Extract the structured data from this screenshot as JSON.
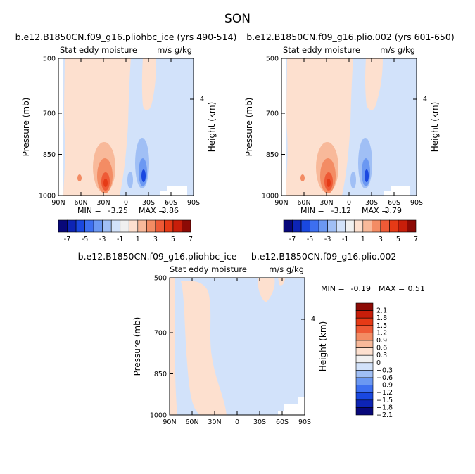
{
  "page": {
    "title": "SON"
  },
  "chart_data": [
    {
      "type": "contour",
      "title": "b.e12.B1850CN.f09_g16.pliohbc_ice (yrs 490-514)",
      "subtitle_left": "Stat eddy moisture",
      "subtitle_right": "m/s g/kg",
      "ylabel": "Pressure (mb)",
      "ylabel_right": "Height (km)",
      "xticks": [
        "90N",
        "60N",
        "30N",
        "0",
        "30S",
        "60S",
        "90S"
      ],
      "xlim": [
        90,
        -90
      ],
      "yticks": [
        "500",
        "700",
        "850",
        "1000"
      ],
      "yticks_values": [
        500,
        700,
        850,
        1000
      ],
      "ylim": [
        1000,
        500
      ],
      "yticks_right": [
        "4"
      ],
      "min_label": "MIN =",
      "min_value": "-3.25",
      "max_label": "MAX =",
      "max_value": "3.86",
      "colorbar_labels": [
        "-7",
        "-5",
        "-3",
        "-1",
        "1",
        "3",
        "5",
        "7"
      ],
      "features": [
        {
          "lat": 30,
          "p": 950,
          "value": 3.86,
          "sign": "positive"
        },
        {
          "lat": -25,
          "p": 920,
          "value": -3.25,
          "sign": "negative"
        }
      ]
    },
    {
      "type": "contour",
      "title": "b.e12.B1850CN.f09_g16.plio.002 (yrs 601-650)",
      "subtitle_left": "Stat eddy moisture",
      "subtitle_right": "m/s g/kg",
      "ylabel": "Pressure (mb)",
      "ylabel_right": "Height (km)",
      "xticks": [
        "90N",
        "60N",
        "30N",
        "0",
        "30S",
        "60S",
        "90S"
      ],
      "xlim": [
        90,
        -90
      ],
      "yticks": [
        "500",
        "700",
        "850",
        "1000"
      ],
      "yticks_values": [
        500,
        700,
        850,
        1000
      ],
      "ylim": [
        1000,
        500
      ],
      "yticks_right": [
        "4"
      ],
      "min_label": "MIN =",
      "min_value": "-3.12",
      "max_label": "MAX =",
      "max_value": "3.79",
      "colorbar_labels": [
        "-7",
        "-5",
        "-3",
        "-1",
        "1",
        "3",
        "5",
        "7"
      ],
      "features": [
        {
          "lat": 30,
          "p": 950,
          "value": 3.79,
          "sign": "positive"
        },
        {
          "lat": -25,
          "p": 920,
          "value": -3.12,
          "sign": "negative"
        }
      ]
    },
    {
      "type": "contour",
      "title": "b.e12.B1850CN.f09_g16.pliohbc_ice — b.e12.B1850CN.f09_g16.plio.002",
      "subtitle_left": "Stat eddy moisture",
      "subtitle_right": "m/s g/kg",
      "ylabel": "Pressure (mb)",
      "ylabel_right": "Height (km)",
      "xticks": [
        "90N",
        "60N",
        "30N",
        "0",
        "30S",
        "60S",
        "90S"
      ],
      "xlim": [
        90,
        -90
      ],
      "yticks": [
        "500",
        "700",
        "850",
        "1000"
      ],
      "yticks_values": [
        500,
        700,
        850,
        1000
      ],
      "ylim": [
        1000,
        500
      ],
      "yticks_right": [
        "4"
      ],
      "min_label": "MIN =",
      "min_value": "-0.19",
      "max_label": "MAX =",
      "max_value": "0.51",
      "colorbar_labels": [
        "2.1",
        "1.8",
        "1.5",
        "1.2",
        "0.9",
        "0.6",
        "0.3",
        "0",
        "−0.3",
        "−0.6",
        "−0.9",
        "−1.2",
        "−1.5",
        "−1.8",
        "−2.1"
      ]
    }
  ],
  "colors": {
    "scale": [
      "#08087a",
      "#0d24b5",
      "#1a48e0",
      "#3d6ff0",
      "#6b98f2",
      "#a0bff5",
      "#d2e2fa",
      "#f0f0f0",
      "#fde0cf",
      "#f8b99a",
      "#f38c64",
      "#ee5a36",
      "#e63a16",
      "#c81e0a",
      "#8c0a05"
    ],
    "light_blue": "#d2e2fa",
    "light_red": "#fde0cf"
  }
}
